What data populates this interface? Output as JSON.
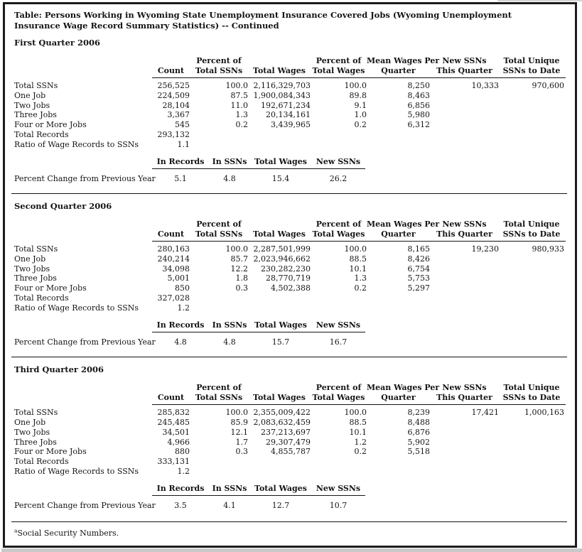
{
  "title": "Table: Persons Working in Wyoming State Unemployment Insurance Covered Jobs (Wyoming Unemployment Insurance Wage Record Summary Statistics) -- Continued",
  "col_headers": [
    {
      "l1": "",
      "l2": "Count"
    },
    {
      "l1": "Percent of",
      "l2": "Total SSNs"
    },
    {
      "l1": "",
      "l2": "Total Wages"
    },
    {
      "l1": "Percent of",
      "l2": "Total Wages"
    },
    {
      "l1": "Mean Wages Per",
      "l2": "Quarter"
    },
    {
      "l1": "New SSNs",
      "l2": "This Quarter"
    },
    {
      "l1": "Total Unique",
      "l2": "SSNs to Date"
    }
  ],
  "change_columns": [
    "In Records",
    "In SSNs",
    "Total Wages",
    "New SSNs"
  ],
  "change_row_label": "Percent Change from Previous Year",
  "quarters": [
    {
      "heading": "First Quarter 2006",
      "rows": [
        {
          "label": "Total SSNs",
          "c1": "256,525",
          "c2": "100.0",
          "c3": "2,116,329,703",
          "c4": "100.0",
          "c5": "8,250",
          "c6": "10,333",
          "c7": "970,600"
        },
        {
          "label": "One Job",
          "c1": "224,509",
          "c2": "87.5",
          "c3": "1,900,084,343",
          "c4": "89.8",
          "c5": "8,463"
        },
        {
          "label": "Two Jobs",
          "c1": "28,104",
          "c2": "11.0",
          "c3": "192,671,234",
          "c4": "9.1",
          "c5": "6,856"
        },
        {
          "label": "Three Jobs",
          "c1": "3,367",
          "c2": "1.3",
          "c3": "20,134,161",
          "c4": "1.0",
          "c5": "5,980"
        },
        {
          "label": "Four or More Jobs",
          "c1": "545",
          "c2": "0.2",
          "c3": "3,439,965",
          "c4": "0.2",
          "c5": "6,312"
        },
        {
          "label": "Total Records",
          "c1": "293,132"
        },
        {
          "label": "Ratio of Wage Records to SSNs",
          "c1": "1.1"
        }
      ],
      "change": {
        "c1": "5.1",
        "c2": "4.8",
        "c3": "15.4",
        "c4": "26.2"
      }
    },
    {
      "heading": "Second Quarter 2006",
      "rows": [
        {
          "label": "Total SSNs",
          "c1": "280,163",
          "c2": "100.0",
          "c3": "2,287,501,999",
          "c4": "100.0",
          "c5": "8,165",
          "c6": "19,230",
          "c7": "980,933"
        },
        {
          "label": "One Job",
          "c1": "240,214",
          "c2": "85.7",
          "c3": "2,023,946,662",
          "c4": "88.5",
          "c5": "8,426"
        },
        {
          "label": "Two Jobs",
          "c1": "34,098",
          "c2": "12.2",
          "c3": "230,282,230",
          "c4": "10.1",
          "c5": "6,754"
        },
        {
          "label": "Three Jobs",
          "c1": "5,001",
          "c2": "1.8",
          "c3": "28,770,719",
          "c4": "1.3",
          "c5": "5,753"
        },
        {
          "label": "Four or More Jobs",
          "c1": "850",
          "c2": "0.3",
          "c3": "4,502,388",
          "c4": "0.2",
          "c5": "5,297"
        },
        {
          "label": "Total Records",
          "c1": "327,028"
        },
        {
          "label": "Ratio of Wage Records to SSNs",
          "c1": "1.2"
        }
      ],
      "change": {
        "c1": "4.8",
        "c2": "4.8",
        "c3": "15.7",
        "c4": "16.7"
      }
    },
    {
      "heading": "Third Quarter 2006",
      "rows": [
        {
          "label": "Total SSNs",
          "c1": "285,832",
          "c2": "100.0",
          "c3": "2,355,009,422",
          "c4": "100.0",
          "c5": "8,239",
          "c6": "17,421",
          "c7": "1,000,163"
        },
        {
          "label": "One Job",
          "c1": "245,485",
          "c2": "85.9",
          "c3": "2,083,632,459",
          "c4": "88.5",
          "c5": "8,488"
        },
        {
          "label": "Two Jobs",
          "c1": "34,501",
          "c2": "12.1",
          "c3": "237,213,697",
          "c4": "10.1",
          "c5": "6,876"
        },
        {
          "label": "Three Jobs",
          "c1": "4,966",
          "c2": "1.7",
          "c3": "29,307,479",
          "c4": "1.2",
          "c5": "5,902"
        },
        {
          "label": "Four or More Jobs",
          "c1": "880",
          "c2": "0.3",
          "c3": "4,855,787",
          "c4": "0.2",
          "c5": "5,518"
        },
        {
          "label": "Total Records",
          "c1": "333,131"
        },
        {
          "label": "Ratio of Wage Records to SSNs",
          "c1": "1.2"
        }
      ],
      "change": {
        "c1": "3.5",
        "c2": "4.1",
        "c3": "12.7",
        "c4": "10.7"
      }
    }
  ],
  "footnote": {
    "marker": "a",
    "text": "Social Security Numbers."
  }
}
